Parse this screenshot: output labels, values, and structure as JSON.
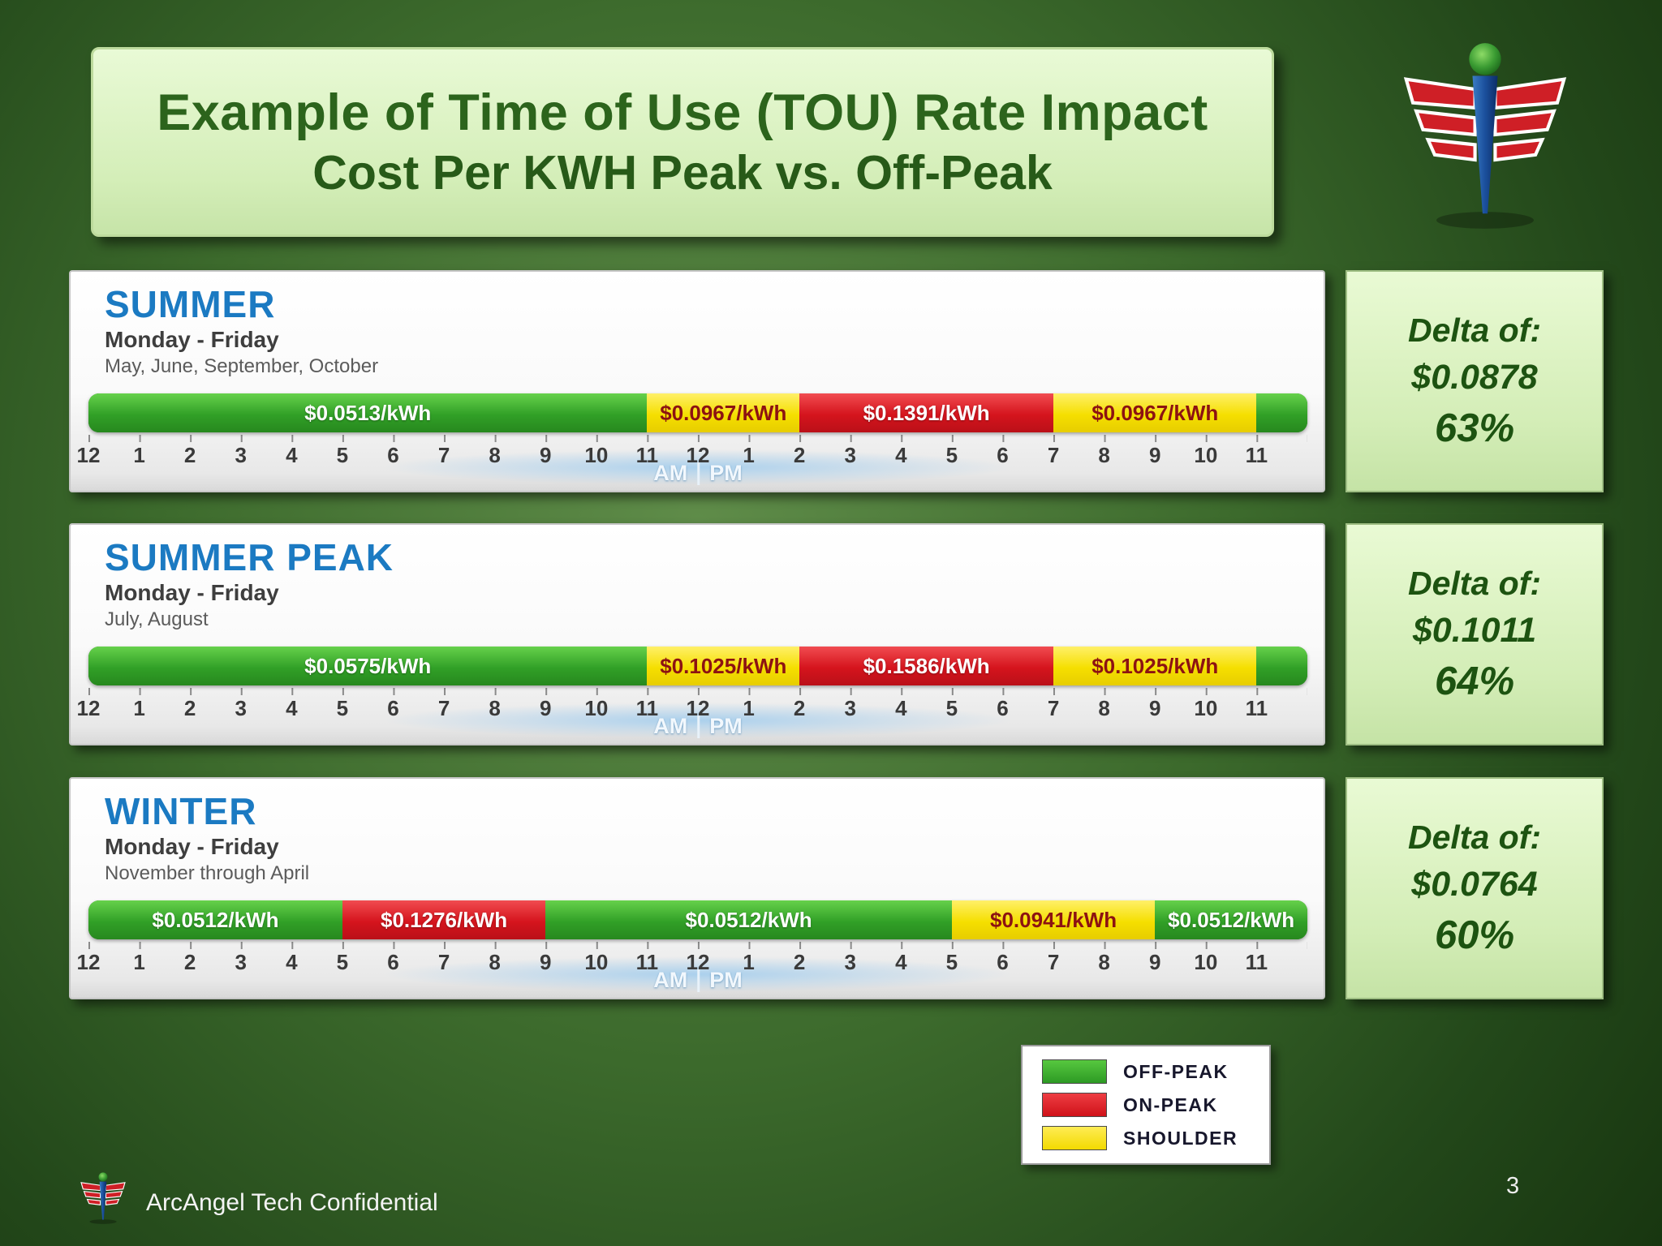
{
  "title": {
    "line1": "Example of Time of Use (TOU) Rate Impact",
    "line2": "Cost Per KWH Peak vs. Off-Peak"
  },
  "colors": {
    "offpeak_green": "#2fa027",
    "onpeak_red": "#d5141d",
    "shoulder_yellow": "#f5df00",
    "season_blue": "#1b7ac2",
    "delta_text_green": "#1d5311",
    "title_box_green": "#d8f0bc",
    "background_green": "#2f5a24"
  },
  "ampm": {
    "am": "AM",
    "pm": "PM"
  },
  "hours": [
    "12",
    "1",
    "2",
    "3",
    "4",
    "5",
    "6",
    "7",
    "8",
    "9",
    "10",
    "11",
    "12",
    "1",
    "2",
    "3",
    "4",
    "5",
    "6",
    "7",
    "8",
    "9",
    "10",
    "11"
  ],
  "legend": [
    {
      "key": "offpeak",
      "label": "OFF-PEAK"
    },
    {
      "key": "onpeak",
      "label": "ON-PEAK"
    },
    {
      "key": "shoulder",
      "label": "SHOULDER"
    }
  ],
  "footer": {
    "confidential": "ArcAngel Tech Confidential",
    "page": "3"
  },
  "chart_data": [
    {
      "type": "bar",
      "subtype": "24h-timeline",
      "title": "SUMMER",
      "days": "Monday - Friday",
      "months": "May, June, September, October",
      "x_unit": "hour of day",
      "x_range": [
        0,
        24
      ],
      "x_tick_labels": [
        "12",
        "1",
        "2",
        "3",
        "4",
        "5",
        "6",
        "7",
        "8",
        "9",
        "10",
        "11",
        "12",
        "1",
        "2",
        "3",
        "4",
        "5",
        "6",
        "7",
        "8",
        "9",
        "10",
        "11"
      ],
      "segments": [
        {
          "category": "OFF-PEAK",
          "category_key": "offpeak",
          "start_hour": 0,
          "end_hour": 11,
          "rate_usd_per_kwh": 0.0513,
          "label": "$0.0513/kWh"
        },
        {
          "category": "SHOULDER",
          "category_key": "shoulder",
          "start_hour": 11,
          "end_hour": 14,
          "rate_usd_per_kwh": 0.0967,
          "label": "$0.0967/kWh"
        },
        {
          "category": "ON-PEAK",
          "category_key": "onpeak",
          "start_hour": 14,
          "end_hour": 19,
          "rate_usd_per_kwh": 0.1391,
          "label": "$0.1391/kWh"
        },
        {
          "category": "SHOULDER",
          "category_key": "shoulder",
          "start_hour": 19,
          "end_hour": 23,
          "rate_usd_per_kwh": 0.0967,
          "label": "$0.0967/kWh"
        },
        {
          "category": "OFF-PEAK",
          "category_key": "offpeak",
          "start_hour": 23,
          "end_hour": 24,
          "rate_usd_per_kwh": 0.0513,
          "label": ""
        }
      ],
      "delta": {
        "label": "Delta of:",
        "amount": "$0.0878",
        "percent": "63%"
      }
    },
    {
      "type": "bar",
      "subtype": "24h-timeline",
      "title": "SUMMER PEAK",
      "days": "Monday - Friday",
      "months": "July, August",
      "x_unit": "hour of day",
      "x_range": [
        0,
        24
      ],
      "x_tick_labels": [
        "12",
        "1",
        "2",
        "3",
        "4",
        "5",
        "6",
        "7",
        "8",
        "9",
        "10",
        "11",
        "12",
        "1",
        "2",
        "3",
        "4",
        "5",
        "6",
        "7",
        "8",
        "9",
        "10",
        "11"
      ],
      "segments": [
        {
          "category": "OFF-PEAK",
          "category_key": "offpeak",
          "start_hour": 0,
          "end_hour": 11,
          "rate_usd_per_kwh": 0.0575,
          "label": "$0.0575/kWh"
        },
        {
          "category": "SHOULDER",
          "category_key": "shoulder",
          "start_hour": 11,
          "end_hour": 14,
          "rate_usd_per_kwh": 0.1025,
          "label": "$0.1025/kWh"
        },
        {
          "category": "ON-PEAK",
          "category_key": "onpeak",
          "start_hour": 14,
          "end_hour": 19,
          "rate_usd_per_kwh": 0.1586,
          "label": "$0.1586/kWh"
        },
        {
          "category": "SHOULDER",
          "category_key": "shoulder",
          "start_hour": 19,
          "end_hour": 23,
          "rate_usd_per_kwh": 0.1025,
          "label": "$0.1025/kWh"
        },
        {
          "category": "OFF-PEAK",
          "category_key": "offpeak",
          "start_hour": 23,
          "end_hour": 24,
          "rate_usd_per_kwh": 0.0575,
          "label": ""
        }
      ],
      "delta": {
        "label": "Delta of:",
        "amount": "$0.1011",
        "percent": "64%"
      }
    },
    {
      "type": "bar",
      "subtype": "24h-timeline",
      "title": "WINTER",
      "days": "Monday - Friday",
      "months": "November through April",
      "x_unit": "hour of day",
      "x_range": [
        0,
        24
      ],
      "x_tick_labels": [
        "12",
        "1",
        "2",
        "3",
        "4",
        "5",
        "6",
        "7",
        "8",
        "9",
        "10",
        "11",
        "12",
        "1",
        "2",
        "3",
        "4",
        "5",
        "6",
        "7",
        "8",
        "9",
        "10",
        "11"
      ],
      "segments": [
        {
          "category": "OFF-PEAK",
          "category_key": "offpeak",
          "start_hour": 0,
          "end_hour": 5,
          "rate_usd_per_kwh": 0.0512,
          "label": "$0.0512/kWh"
        },
        {
          "category": "ON-PEAK",
          "category_key": "onpeak",
          "start_hour": 5,
          "end_hour": 9,
          "rate_usd_per_kwh": 0.1276,
          "label": "$0.1276/kWh"
        },
        {
          "category": "OFF-PEAK",
          "category_key": "offpeak",
          "start_hour": 9,
          "end_hour": 17,
          "rate_usd_per_kwh": 0.0512,
          "label": "$0.0512/kWh"
        },
        {
          "category": "SHOULDER",
          "category_key": "shoulder",
          "start_hour": 17,
          "end_hour": 21,
          "rate_usd_per_kwh": 0.0941,
          "label": "$0.0941/kWh"
        },
        {
          "category": "OFF-PEAK",
          "category_key": "offpeak",
          "start_hour": 21,
          "end_hour": 24,
          "rate_usd_per_kwh": 0.0512,
          "label": "$0.0512/kWh"
        }
      ],
      "delta": {
        "label": "Delta of:",
        "amount": "$0.0764",
        "percent": "60%"
      }
    }
  ]
}
